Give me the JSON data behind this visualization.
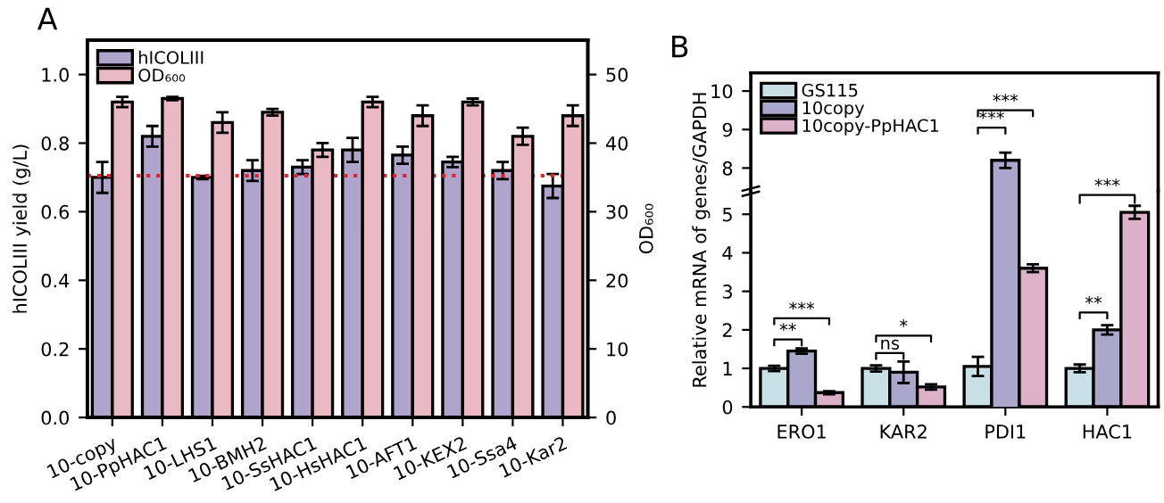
{
  "chart_data": [
    {
      "type": "bar",
      "categories": [
        "10-copy",
        "10-PpHAC1",
        "10-LHS1",
        "10-BMH2",
        "10-SsHAC1",
        "10-HsHAC1",
        "10-AFT1",
        "10-KEX2",
        "10-Ssa4",
        "10-Kar2"
      ],
      "series": [
        {
          "name": "hICOLIII",
          "color": "#b0a4cc",
          "values": [
            0.7,
            0.82,
            0.7,
            0.72,
            0.73,
            0.78,
            0.765,
            0.745,
            0.72,
            0.675
          ],
          "errors": [
            0.045,
            0.03,
            0.005,
            0.03,
            0.02,
            0.035,
            0.025,
            0.015,
            0.025,
            0.035
          ]
        },
        {
          "name": "OD₆₀₀",
          "color": "#ebb9c4",
          "axis": "y2",
          "values": [
            46,
            46.5,
            43,
            44.5,
            39,
            46,
            44,
            46,
            41,
            44
          ],
          "errors": [
            0.75,
            0.25,
            1.5,
            0.5,
            1,
            0.75,
            1.5,
            0.5,
            1.25,
            1.5
          ]
        }
      ],
      "ylabel": "hICOLIII yield (g/L)",
      "y2label": "OD₆₀₀",
      "ylim": [
        0,
        1.1
      ],
      "yticks": [
        {
          "value": 0,
          "label": "0.0"
        },
        0.2,
        0.4,
        0.6,
        0.8,
        {
          "value": 1,
          "label": "1.0"
        }
      ],
      "y2lim": [
        0,
        55
      ],
      "y2ticks": [
        0,
        10,
        20,
        30,
        40,
        50
      ],
      "ref_lines": [
        {
          "axis": "y",
          "value": 0.705,
          "color": "#e8202a",
          "line_style": "dotted"
        }
      ],
      "annotations": [
        "A"
      ],
      "legend": "top left",
      "grid": false
    },
    {
      "type": "bar",
      "categories": [
        null,
        null,
        null,
        null
      ],
      "series": [
        {
          "name": "GS115",
          "color": "#c9e0e6",
          "values": [
            null,
            null,
            null,
            null
          ]
        },
        {
          "name": "10copy",
          "color": "#a9a8cc",
          "values": [
            null,
            null,
            8.2,
            null
          ],
          "errors": [
            null,
            null,
            0.2,
            null
          ]
        },
        {
          "name": "10copy-PpHAC1",
          "color": "#dcb0c8",
          "values": [
            null,
            null,
            null,
            null
          ]
        }
      ],
      "ylim": [
        7.4,
        10.47
      ],
      "yticks": [
        8,
        9,
        10
      ],
      "tick_labels": "y",
      "annotations": [
        "B",
        "***",
        "***"
      ],
      "legend": "top left",
      "grid": false
    },
    {
      "type": "bar",
      "categories": [
        "ERO1",
        "KAR2",
        "PDI1",
        "HAC1"
      ],
      "series": [
        {
          "color": "#c9e0e6",
          "values": [
            1.0,
            1.0,
            1.05,
            1.0
          ],
          "errors": [
            0.07,
            0.08,
            0.25,
            0.1
          ]
        },
        {
          "color": "#a9a8cc",
          "values": [
            1.45,
            0.9,
            null,
            2.0
          ],
          "errors": [
            0.07,
            0.28,
            null,
            0.12
          ]
        },
        {
          "color": "#dcb0c8",
          "values": [
            0.37,
            0.52,
            3.6,
            5.05
          ],
          "errors": [
            0.04,
            0.07,
            0.1,
            0.17
          ]
        }
      ],
      "ylabel": "Relative mRNA of genes/GAPDH",
      "ylim": [
        0,
        5.6
      ],
      "yticks": [
        0,
        1,
        2,
        3,
        4,
        5
      ],
      "annotations": [
        "**",
        "***",
        "ns",
        "*",
        "**",
        "***"
      ],
      "legend": false,
      "grid": false
    }
  ]
}
